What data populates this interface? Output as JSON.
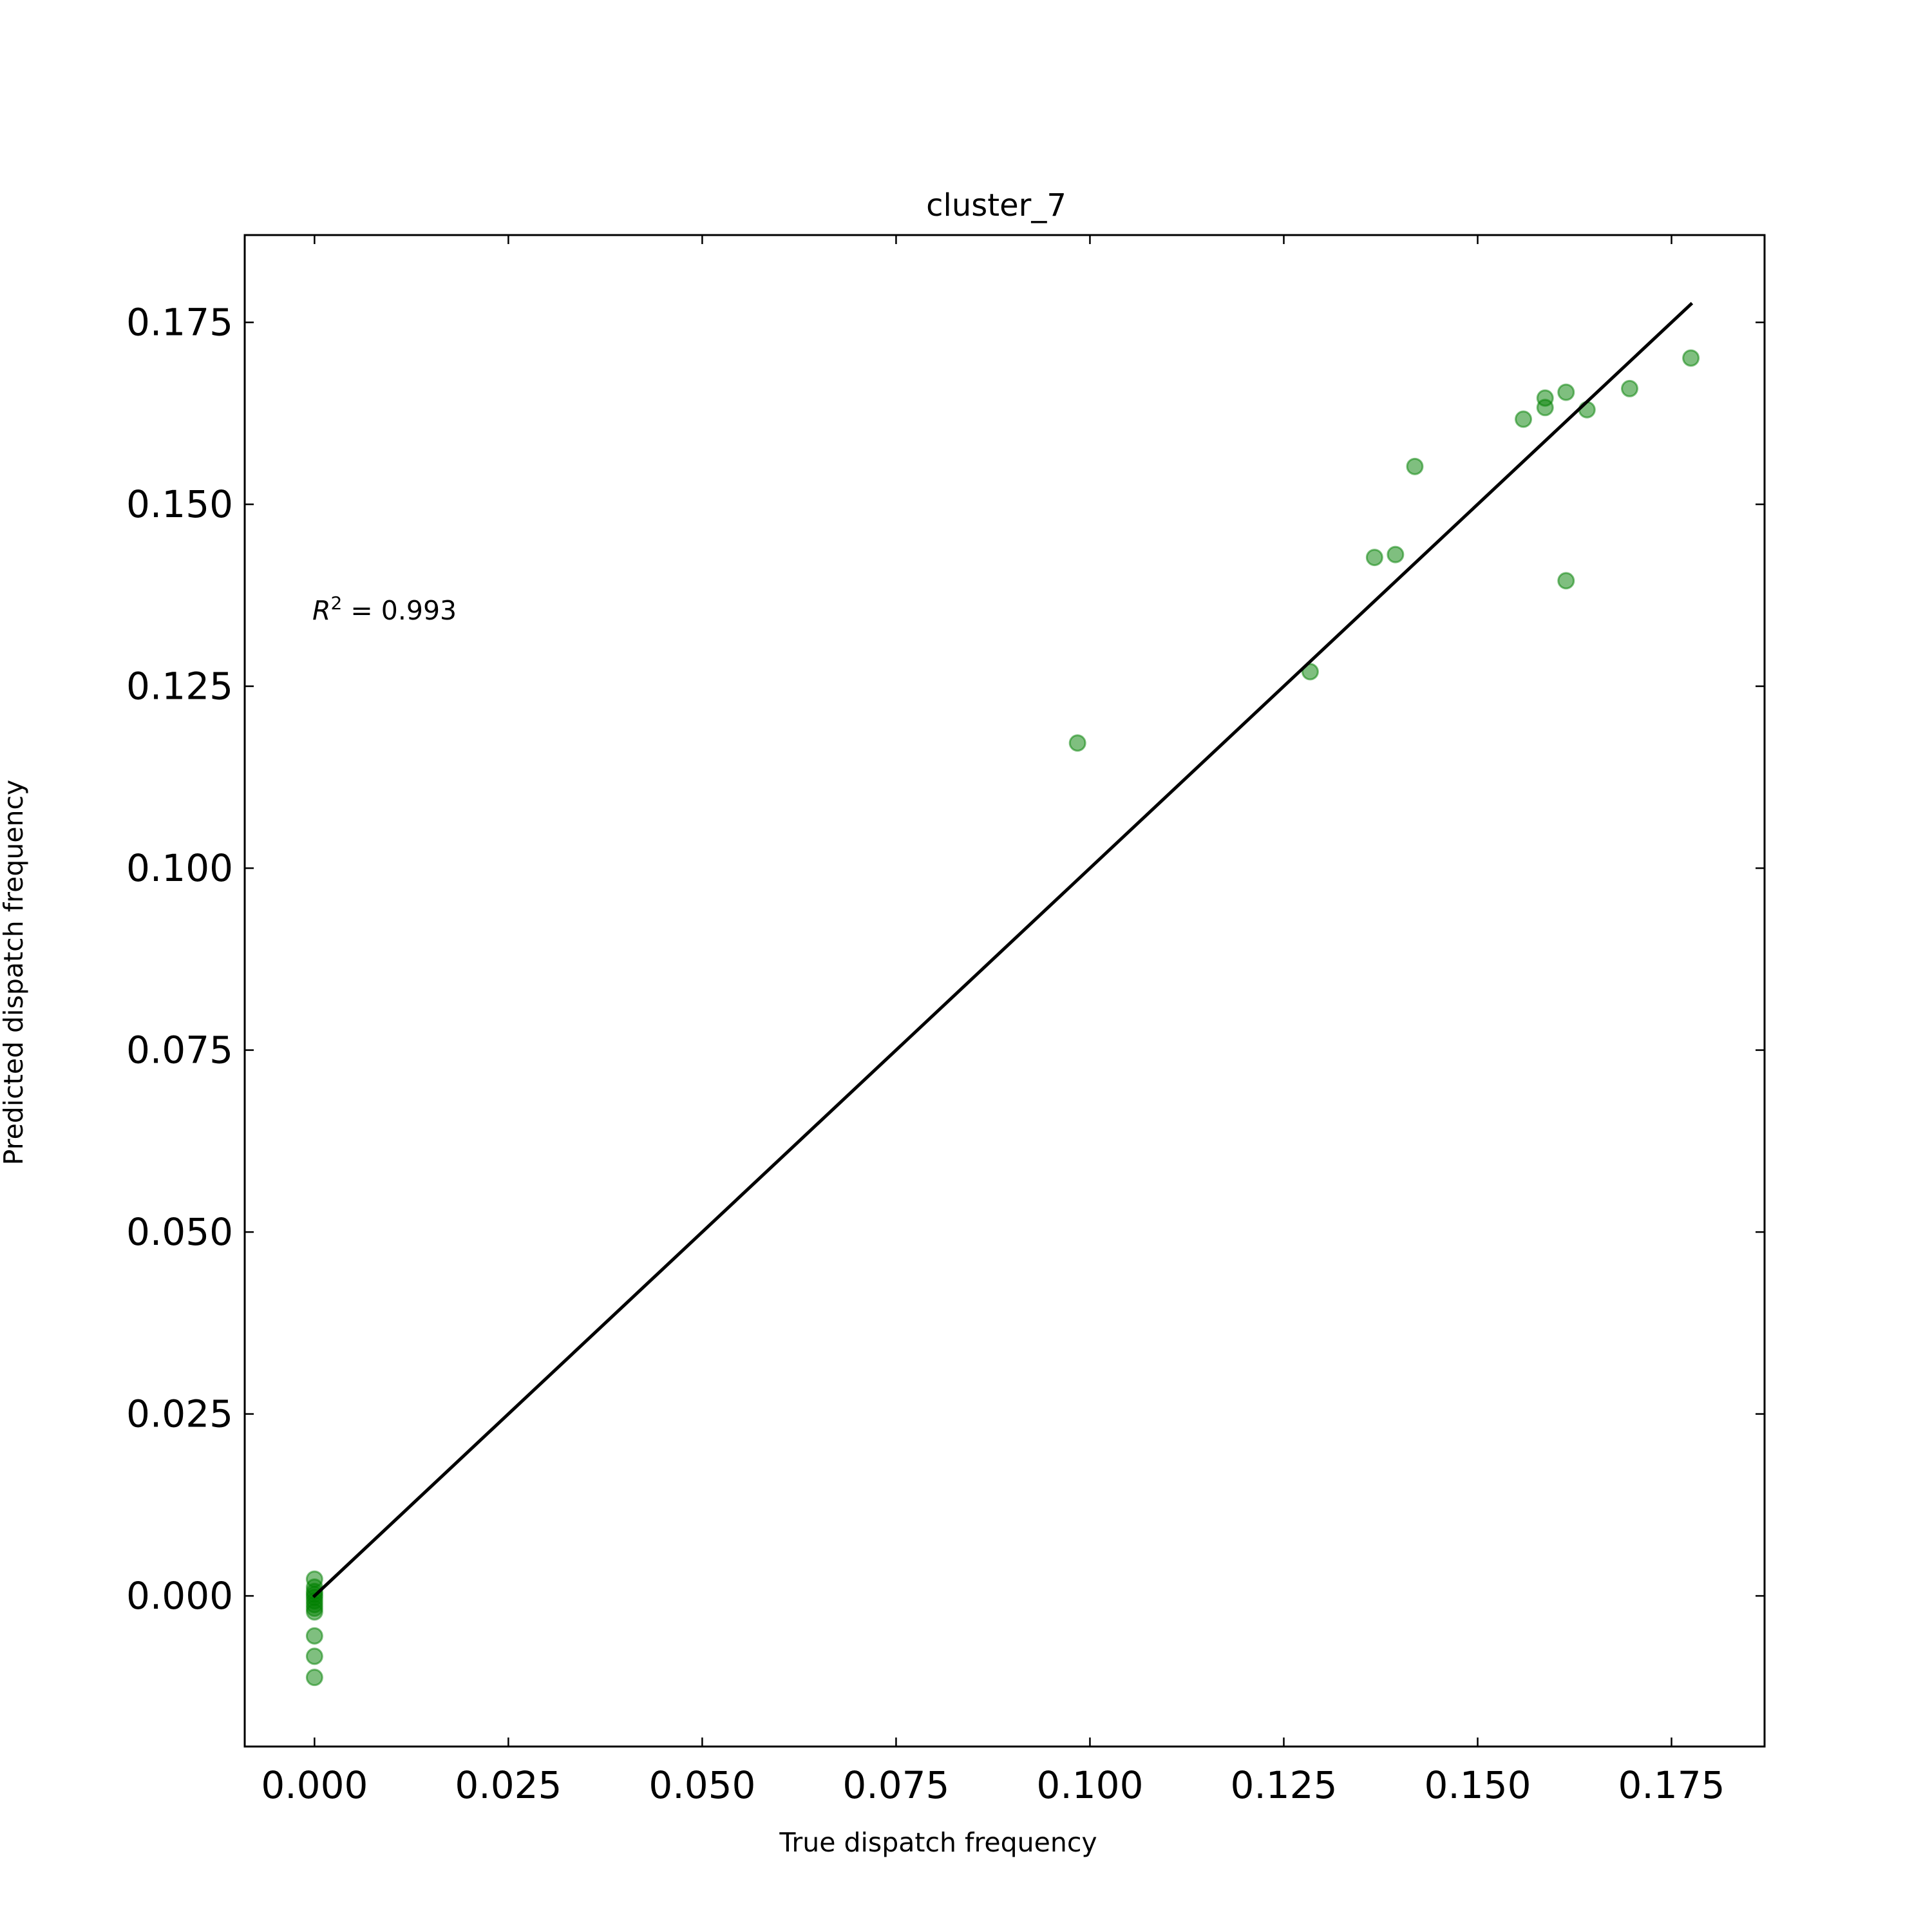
{
  "chart_data": {
    "type": "scatter",
    "title": "cluster_7",
    "xlabel": "True dispatch frequency",
    "ylabel": "Predicted dispatch frequency",
    "xlim": [
      -0.009,
      0.187
    ],
    "ylim": [
      -0.0207,
      0.187
    ],
    "xticks": [
      "0.000",
      "0.025",
      "0.050",
      "0.075",
      "0.100",
      "0.125",
      "0.150",
      "0.175"
    ],
    "yticks": [
      "0.000",
      "0.025",
      "0.050",
      "0.075",
      "0.100",
      "0.125",
      "0.150",
      "0.175"
    ],
    "grid": false,
    "annotation": {
      "r2_symbol": "R",
      "r2_exponent": "2",
      "r2_value": " = 0.993"
    },
    "identity_line": {
      "x": [
        0,
        0.1775
      ],
      "y": [
        0,
        0.1775
      ],
      "color": "#000000"
    },
    "point_color": "#008000",
    "series": [
      {
        "points": [
          {
            "x": 0,
            "y": 0.0023
          },
          {
            "x": 0,
            "y": 0.0012
          },
          {
            "x": 0,
            "y": 0.0006
          },
          {
            "x": 0,
            "y": 0.0002
          },
          {
            "x": 0,
            "y": -0.0002
          },
          {
            "x": 0,
            "y": -0.0007
          },
          {
            "x": 0,
            "y": -0.0012
          },
          {
            "x": 0,
            "y": -0.0017
          },
          {
            "x": 0,
            "y": -0.0022
          },
          {
            "x": 0,
            "y": -0.0055
          },
          {
            "x": 0,
            "y": -0.0083
          },
          {
            "x": 0,
            "y": -0.0112
          },
          {
            "x": 0.0984,
            "y": 0.1172
          },
          {
            "x": 0.1284,
            "y": 0.127
          },
          {
            "x": 0.1367,
            "y": 0.1427
          },
          {
            "x": 0.1394,
            "y": 0.1431
          },
          {
            "x": 0.1419,
            "y": 0.1552
          },
          {
            "x": 0.1559,
            "y": 0.1617
          },
          {
            "x": 0.1587,
            "y": 0.1646
          },
          {
            "x": 0.1587,
            "y": 0.1633
          },
          {
            "x": 0.1614,
            "y": 0.1654
          },
          {
            "x": 0.1614,
            "y": 0.1395
          },
          {
            "x": 0.1641,
            "y": 0.163
          },
          {
            "x": 0.1696,
            "y": 0.1659
          },
          {
            "x": 0.1775,
            "y": 0.1701
          }
        ]
      }
    ]
  }
}
